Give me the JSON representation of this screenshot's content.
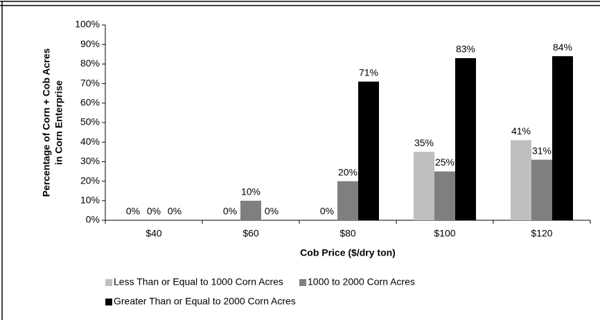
{
  "chart_data": {
    "type": "bar",
    "ylabel": [
      "Percentage of Corn + Cob Acres",
      "in Corn Enterprise"
    ],
    "xlabel": "Cob Price ($/dry ton)",
    "categories": [
      "$40",
      "$60",
      "$80",
      "$100",
      "$120"
    ],
    "series": [
      {
        "name": "Less Than or Equal to 1000 Corn Acres",
        "color": "#bfbfbf",
        "values": [
          0,
          0,
          0,
          35,
          41
        ],
        "value_labels": [
          "0%",
          "0%",
          "0%",
          "35%",
          "41%"
        ]
      },
      {
        "name": "1000 to 2000 Corn Acres",
        "color": "#7f7f7f",
        "values": [
          0,
          10,
          20,
          25,
          31
        ],
        "value_labels": [
          "0%",
          "10%",
          "20%",
          "25%",
          "31%"
        ]
      },
      {
        "name": "Greater Than or Equal to 2000 Corn Acres",
        "color": "#000000",
        "values": [
          0,
          0,
          71,
          83,
          84
        ],
        "value_labels": [
          "0%",
          "0%",
          "71%",
          "83%",
          "84%"
        ]
      }
    ],
    "ylim": [
      0,
      100
    ],
    "yticks": [
      {
        "value": 0,
        "label": "0%"
      },
      {
        "value": 10,
        "label": "10%"
      },
      {
        "value": 20,
        "label": "20%"
      },
      {
        "value": 30,
        "label": "30%"
      },
      {
        "value": 40,
        "label": "40%"
      },
      {
        "value": 50,
        "label": "50%"
      },
      {
        "value": 60,
        "label": "60%"
      },
      {
        "value": 70,
        "label": "70%"
      },
      {
        "value": 80,
        "label": "80%"
      },
      {
        "value": 90,
        "label": "90%"
      },
      {
        "value": 100,
        "label": "100%"
      }
    ],
    "legend": "bottom"
  }
}
